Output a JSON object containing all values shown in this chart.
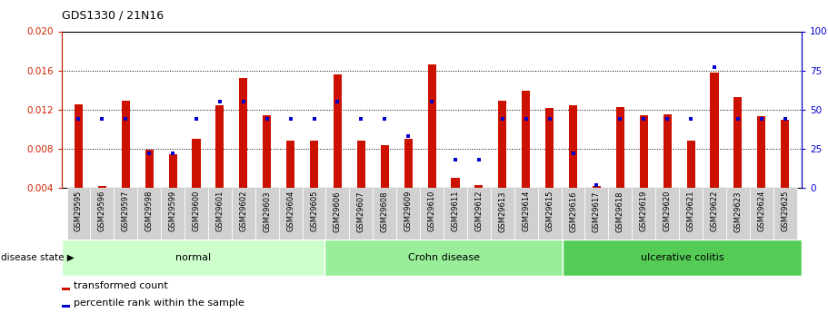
{
  "title": "GDS1330 / 21N16",
  "samples": [
    "GSM29595",
    "GSM29596",
    "GSM29597",
    "GSM29598",
    "GSM29599",
    "GSM29600",
    "GSM29601",
    "GSM29602",
    "GSM29603",
    "GSM29604",
    "GSM29605",
    "GSM29606",
    "GSM29607",
    "GSM29608",
    "GSM29609",
    "GSM29610",
    "GSM29611",
    "GSM29612",
    "GSM29613",
    "GSM29614",
    "GSM29615",
    "GSM29616",
    "GSM29617",
    "GSM29618",
    "GSM29619",
    "GSM29620",
    "GSM29621",
    "GSM29622",
    "GSM29623",
    "GSM29624",
    "GSM29625"
  ],
  "transformed_count": [
    0.01255,
    0.0042,
    0.01295,
    0.0079,
    0.00745,
    0.009,
    0.01245,
    0.01525,
    0.01145,
    0.0088,
    0.0088,
    0.01555,
    0.0088,
    0.00835,
    0.009,
    0.01665,
    0.00505,
    0.0043,
    0.01295,
    0.01395,
    0.01215,
    0.01245,
    0.0042,
    0.01225,
    0.01145,
    0.0115,
    0.0088,
    0.01575,
    0.01325,
    0.01135,
    0.011
  ],
  "percentile_rank": [
    44,
    44,
    44,
    22,
    22,
    44,
    55,
    55,
    44,
    44,
    44,
    55,
    44,
    44,
    33,
    55,
    18,
    18,
    44,
    44,
    44,
    22,
    2,
    44,
    44,
    44,
    44,
    77,
    44,
    44,
    44
  ],
  "groups": [
    {
      "label": "normal",
      "start": 0,
      "end": 11,
      "color": "#ccffcc"
    },
    {
      "label": "Crohn disease",
      "start": 11,
      "end": 21,
      "color": "#99ee99"
    },
    {
      "label": "ulcerative colitis",
      "start": 21,
      "end": 31,
      "color": "#55cc55"
    }
  ],
  "ylim_left": [
    0.004,
    0.02
  ],
  "ylim_right": [
    0,
    100
  ],
  "yticks_left": [
    0.004,
    0.008,
    0.012,
    0.016,
    0.02
  ],
  "yticks_right": [
    0,
    25,
    50,
    75,
    100
  ],
  "bar_color": "#cc1100",
  "dot_color": "#0000cc",
  "background_color": "#ffffff",
  "ylabel_left_color": "#cc2200",
  "ylabel_right_color": "#0000cc",
  "disease_state_label": "disease state",
  "legend_items": [
    {
      "label": "transformed count",
      "color": "#cc1100"
    },
    {
      "label": "percentile rank within the sample",
      "color": "#0000cc"
    }
  ],
  "figsize": [
    9.11,
    3.45
  ],
  "dpi": 100
}
